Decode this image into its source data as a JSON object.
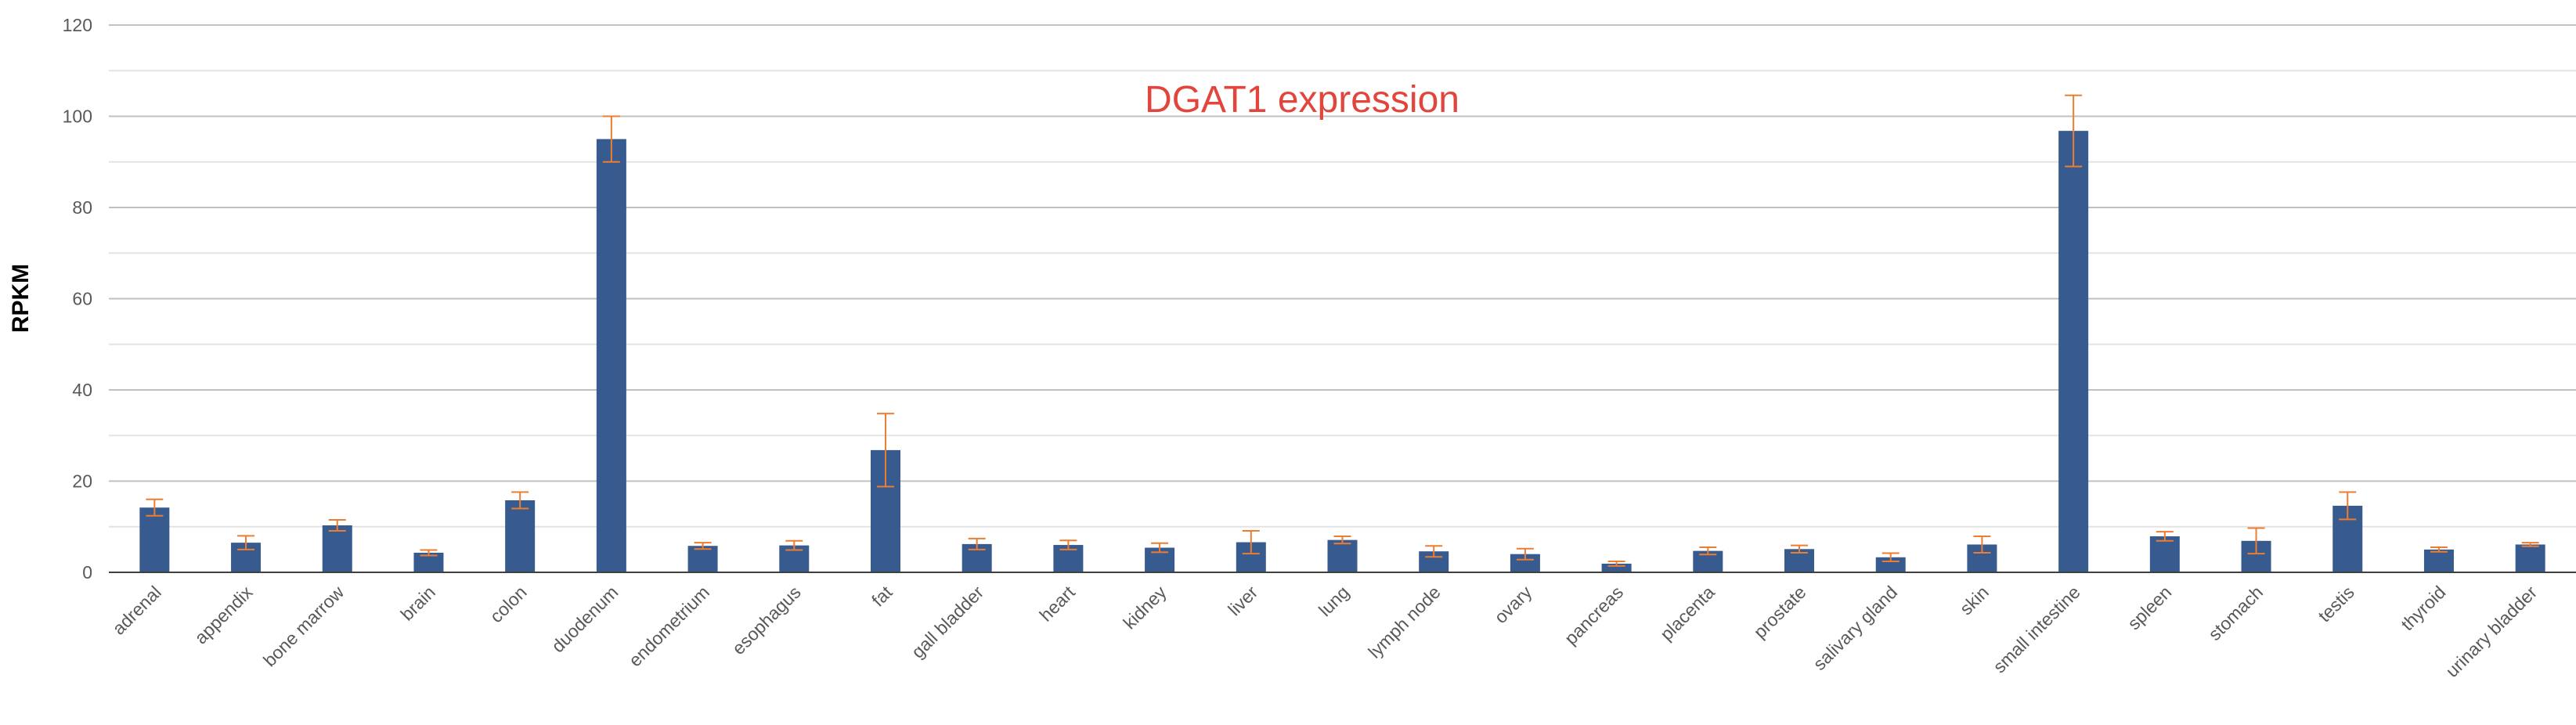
{
  "chart_data": {
    "type": "bar",
    "title": "DGAT1 expression",
    "xlabel": "",
    "ylabel": "RPKM",
    "ylim": [
      0,
      120
    ],
    "yticks": [
      0,
      20,
      40,
      60,
      80,
      100,
      120
    ],
    "grid": "major and minor horizontal gridlines",
    "categories": [
      "adrenal",
      "appendix",
      "bone marrow",
      "brain",
      "colon",
      "duodenum",
      "endometrium",
      "esophagus",
      "fat",
      "gall bladder",
      "heart",
      "kidney",
      "liver",
      "lung",
      "lymph node",
      "ovary",
      "pancreas",
      "placenta",
      "prostate",
      "salivary gland",
      "skin",
      "small intestine",
      "spleen",
      "stomach",
      "testis",
      "thyroid",
      "urinary bladder"
    ],
    "series": [
      {
        "values": [
          14.2,
          6.5,
          10.3,
          4.3,
          15.8,
          95.0,
          5.8,
          5.9,
          26.8,
          6.2,
          6.0,
          5.4,
          6.6,
          7.1,
          4.6,
          4.0,
          1.9,
          4.7,
          5.1,
          3.3,
          6.1,
          96.8,
          7.9,
          6.9,
          14.6,
          5.0,
          6.1
        ],
        "errors": [
          1.8,
          1.5,
          1.2,
          0.6,
          1.8,
          5.0,
          0.7,
          1.0,
          8.0,
          1.2,
          1.0,
          1.0,
          2.5,
          0.8,
          1.2,
          1.2,
          0.5,
          0.8,
          0.8,
          0.9,
          1.8,
          7.8,
          1.0,
          2.8,
          3.0,
          0.5,
          0.4
        ]
      }
    ],
    "colors": {
      "bar": "#375a8f",
      "error_bar": "#ed7d31",
      "title": "#e2453c",
      "axis": "#404040",
      "grid_major": "#c0c0c0",
      "grid_minor": "#e3e3e3"
    }
  }
}
